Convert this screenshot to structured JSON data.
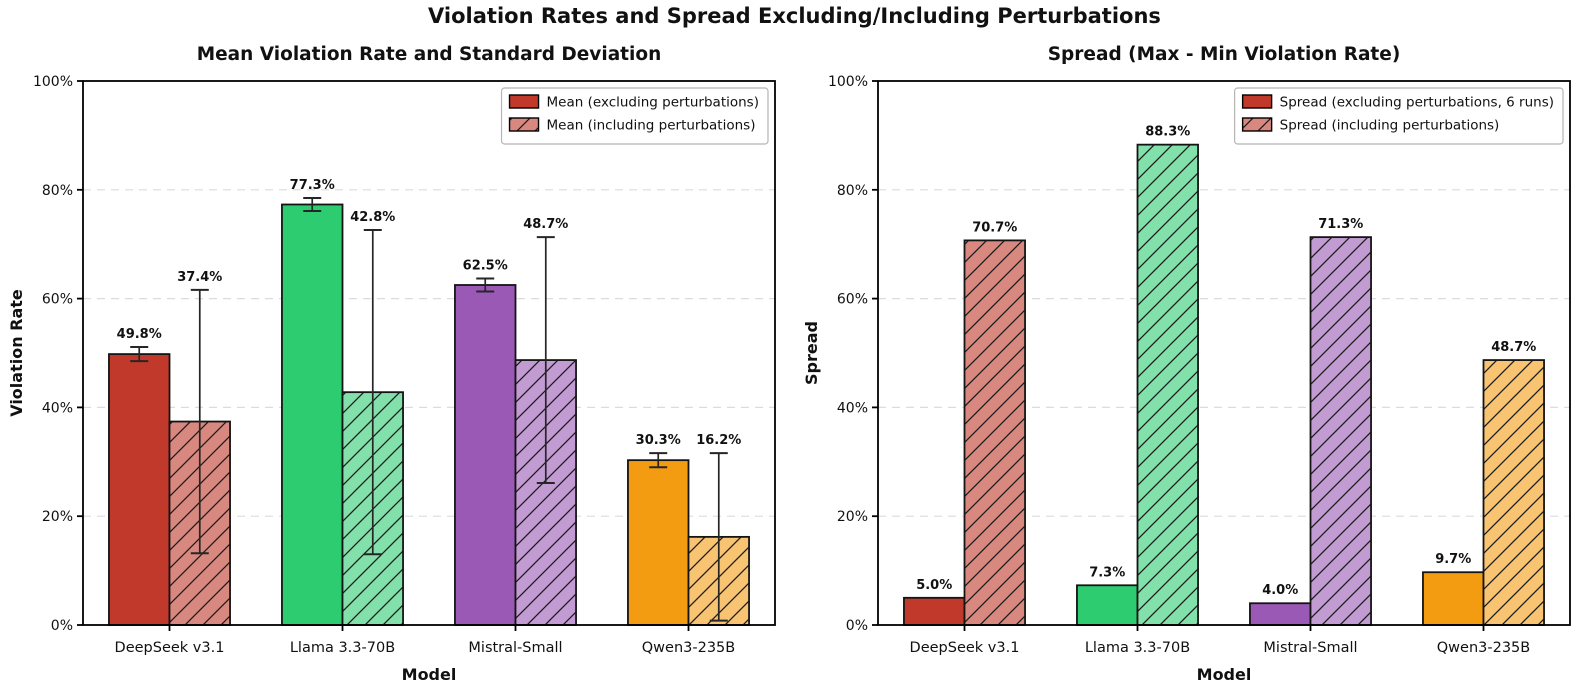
{
  "figure": {
    "title": "Violation Rates and Spread Excluding/Including Perturbations"
  },
  "colors": {
    "background": "#ffffff",
    "solid": [
      "#c0392b",
      "#2ecc71",
      "#9b59b6",
      "#f39c12"
    ],
    "hatched": [
      "#d98880",
      "#82e0aa",
      "#c39bd3",
      "#f8c471"
    ],
    "bar_edge": "#141414",
    "hatch_line": "#1c1c1c",
    "errorbar": "#262626",
    "grid": "#dcdcdc",
    "spine": "#000000",
    "legend_border": "#b5b5b5",
    "legend_background": "#ffffff"
  },
  "chart_data": [
    {
      "type": "bar",
      "title": "Mean Violation Rate and Standard Deviation",
      "xlabel": "Model",
      "ylabel": "Violation Rate",
      "categories": [
        "DeepSeek v3.1",
        "Llama 3.3-70B",
        "Mistral-Small",
        "Qwen3-235B"
      ],
      "ylim": [
        0,
        100
      ],
      "yticks": [
        0,
        20,
        40,
        60,
        80,
        100
      ],
      "ytick_labels": [
        "0%",
        "20%",
        "40%",
        "60%",
        "80%",
        "100%"
      ],
      "grid": true,
      "legend_position": "upper right",
      "series": [
        {
          "name": "Mean (excluding perturbations)",
          "hatch": false,
          "values": [
            49.8,
            77.3,
            62.5,
            30.3
          ],
          "std": [
            1.3,
            1.2,
            1.2,
            1.3
          ],
          "labels": [
            "49.8%",
            "77.3%",
            "62.5%",
            "30.3%"
          ]
        },
        {
          "name": "Mean (including perturbations)",
          "hatch": true,
          "values": [
            37.4,
            42.8,
            48.7,
            16.2
          ],
          "std": [
            24.2,
            29.8,
            22.6,
            15.4
          ],
          "labels": [
            "37.4%",
            "42.8%",
            "48.7%",
            "16.2%"
          ]
        }
      ]
    },
    {
      "type": "bar",
      "title": "Spread (Max - Min Violation Rate)",
      "xlabel": "Model",
      "ylabel": "Spread",
      "categories": [
        "DeepSeek v3.1",
        "Llama 3.3-70B",
        "Mistral-Small",
        "Qwen3-235B"
      ],
      "ylim": [
        0,
        100
      ],
      "yticks": [
        0,
        20,
        40,
        60,
        80,
        100
      ],
      "ytick_labels": [
        "0%",
        "20%",
        "40%",
        "60%",
        "80%",
        "100%"
      ],
      "grid": true,
      "legend_position": "upper right",
      "series": [
        {
          "name": "Spread (excluding perturbations, 6 runs)",
          "hatch": false,
          "values": [
            5.0,
            7.3,
            4.0,
            9.7
          ],
          "labels": [
            "5.0%",
            "7.3%",
            "4.0%",
            "9.7%"
          ]
        },
        {
          "name": "Spread (including perturbations)",
          "hatch": true,
          "values": [
            70.7,
            88.3,
            71.3,
            48.7
          ],
          "labels": [
            "70.7%",
            "88.3%",
            "71.3%",
            "48.7%"
          ]
        }
      ]
    }
  ]
}
